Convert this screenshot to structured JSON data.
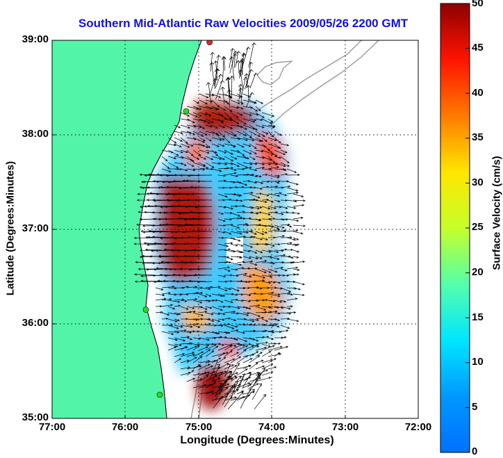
{
  "title": "Southern Mid-Atlantic Raw Velocities 2009/05/26 2200 GMT",
  "xlabel": "Longitude (Degrees:Minutes)",
  "ylabel": "Latitude (Degrees:Minutes)",
  "colorbar": {
    "label": "Surface Velocity (cm/s)",
    "ticks": [
      "50",
      "45",
      "40",
      "35",
      "30",
      "25",
      "20",
      "15",
      "10",
      "5",
      "0"
    ],
    "min": 0,
    "max": 50,
    "colormap": "jet"
  },
  "x_ticks": [
    "77:00",
    "76:00",
    "75:00",
    "74:00",
    "73:00",
    "72:00"
  ],
  "y_ticks": [
    "39:00",
    "38:00",
    "37:00",
    "36:00",
    "35:00"
  ],
  "colors": {
    "land": "#52f5a8",
    "title": "#1010e0",
    "bathymetry": "#9a9a9a",
    "station": "#22dd22",
    "station_alt": "#ee2222"
  },
  "chart_data": {
    "type": "heatmap",
    "title": "Southern Mid-Atlantic Raw Velocities 2009/05/26 2200 GMT",
    "xlabel": "Longitude (Degrees:Minutes)",
    "ylabel": "Latitude (Degrees:Minutes)",
    "xlim": [
      -77.0,
      -72.0
    ],
    "ylim": [
      35.0,
      39.0
    ],
    "grid": true,
    "color_range_cm_s": [
      0,
      50
    ],
    "regions": [
      {
        "lon": -75.1,
        "lat": 37.0,
        "speed_cm_s": 48
      },
      {
        "lon": -74.9,
        "lat": 38.1,
        "speed_cm_s": 42
      },
      {
        "lon": -74.9,
        "lat": 37.7,
        "speed_cm_s": 10
      },
      {
        "lon": -74.3,
        "lat": 37.7,
        "speed_cm_s": 40
      },
      {
        "lon": -74.4,
        "lat": 36.5,
        "speed_cm_s": 12
      },
      {
        "lon": -74.6,
        "lat": 36.1,
        "speed_cm_s": 28
      },
      {
        "lon": -75.0,
        "lat": 35.8,
        "speed_cm_s": 12
      },
      {
        "lon": -74.9,
        "lat": 35.3,
        "speed_cm_s": 45
      }
    ],
    "stations": [
      {
        "lon": -74.85,
        "lat": 38.98,
        "color": "red"
      },
      {
        "lon": -75.17,
        "lat": 38.25,
        "color": "green"
      },
      {
        "lon": -75.72,
        "lat": 36.15,
        "color": "green"
      },
      {
        "lon": -75.53,
        "lat": 35.25,
        "color": "green"
      }
    ]
  }
}
